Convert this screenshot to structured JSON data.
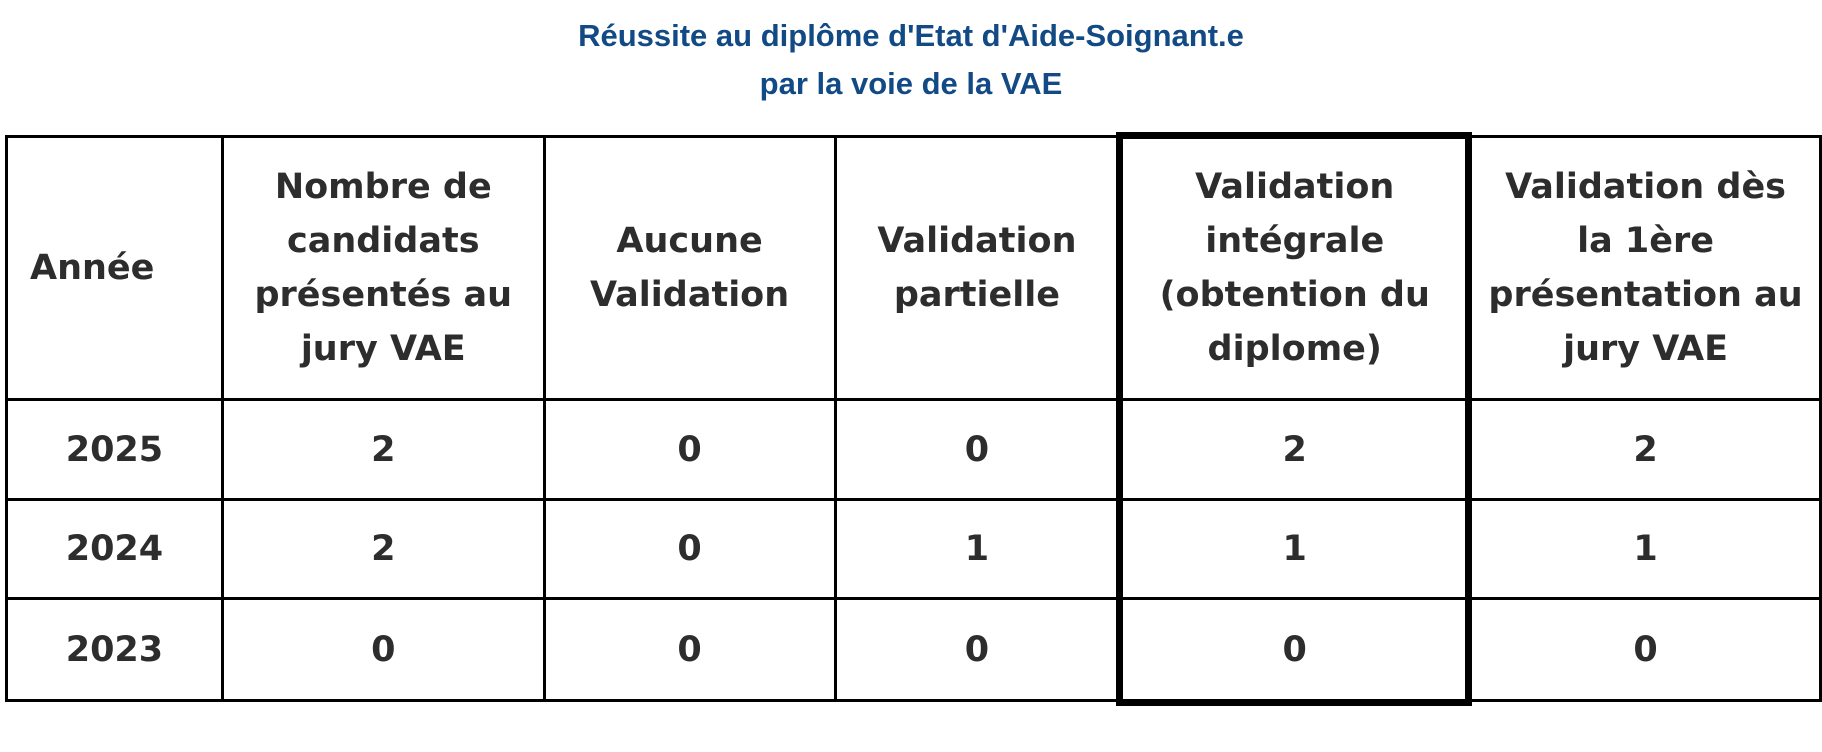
{
  "title": {
    "line1": "Réussite au diplôme d'Etat d'Aide-Soignant.e",
    "line2": "par la voie de la VAE"
  },
  "table": {
    "headers": [
      "Année",
      "Nombre de candidats présentés au jury VAE",
      "Aucune Validation",
      "Validation partielle",
      "Validation intégrale (obtention du diplome)",
      "Validation dès la 1ère présentation au jury VAE"
    ],
    "rows": [
      [
        2025,
        2,
        0,
        0,
        2,
        2
      ],
      [
        2024,
        2,
        0,
        1,
        1,
        1
      ],
      [
        2023,
        0,
        0,
        0,
        0,
        0
      ]
    ]
  }
}
